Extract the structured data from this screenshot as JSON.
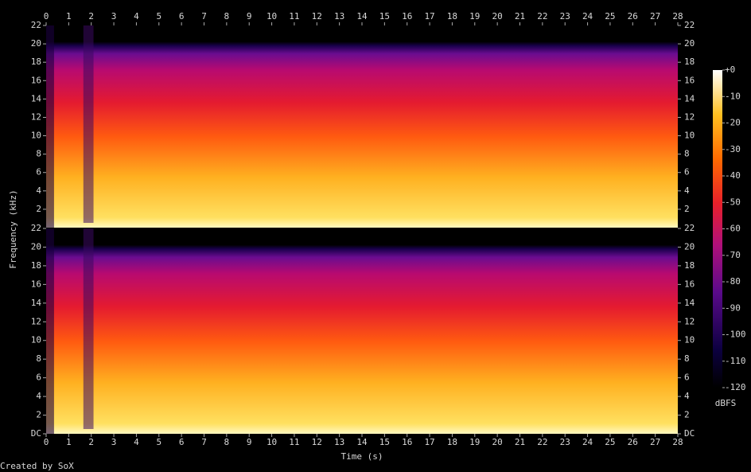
{
  "chart_data": [
    {
      "type": "spectrogram",
      "xlim": [
        0,
        28
      ],
      "xticks": [
        0,
        1,
        2,
        3,
        4,
        5,
        6,
        7,
        8,
        9,
        10,
        11,
        12,
        13,
        14,
        15,
        16,
        17,
        18,
        19,
        20,
        21,
        22,
        23,
        24,
        25,
        26,
        27,
        28
      ],
      "ylim": [
        0,
        22
      ],
      "yticks": [
        2,
        4,
        6,
        8,
        10,
        12,
        14,
        16,
        18,
        20,
        22
      ],
      "ylabel": "Frequency (kHz)"
    },
    {
      "type": "spectrogram",
      "xlim": [
        0,
        28
      ],
      "xticks": [
        0,
        1,
        2,
        3,
        4,
        5,
        6,
        7,
        8,
        9,
        10,
        11,
        12,
        13,
        14,
        15,
        16,
        17,
        18,
        19,
        20,
        21,
        22,
        23,
        24,
        25,
        26,
        27,
        28
      ],
      "ylim": [
        0,
        22
      ],
      "yticks": [
        {
          "value": 0,
          "label": "DC"
        },
        2,
        4,
        6,
        8,
        10,
        12,
        14,
        16,
        18,
        20,
        22
      ],
      "xlabel": "Time (s)"
    }
  ],
  "colorbar": {
    "label": "dBFS",
    "lim": [
      -120,
      0
    ],
    "ticks": [
      {
        "value": 0,
        "label": "+0"
      },
      -10,
      -20,
      -30,
      -40,
      -50,
      -60,
      -70,
      -80,
      -90,
      -100,
      -110,
      -120
    ]
  },
  "credit": "Created by SoX"
}
